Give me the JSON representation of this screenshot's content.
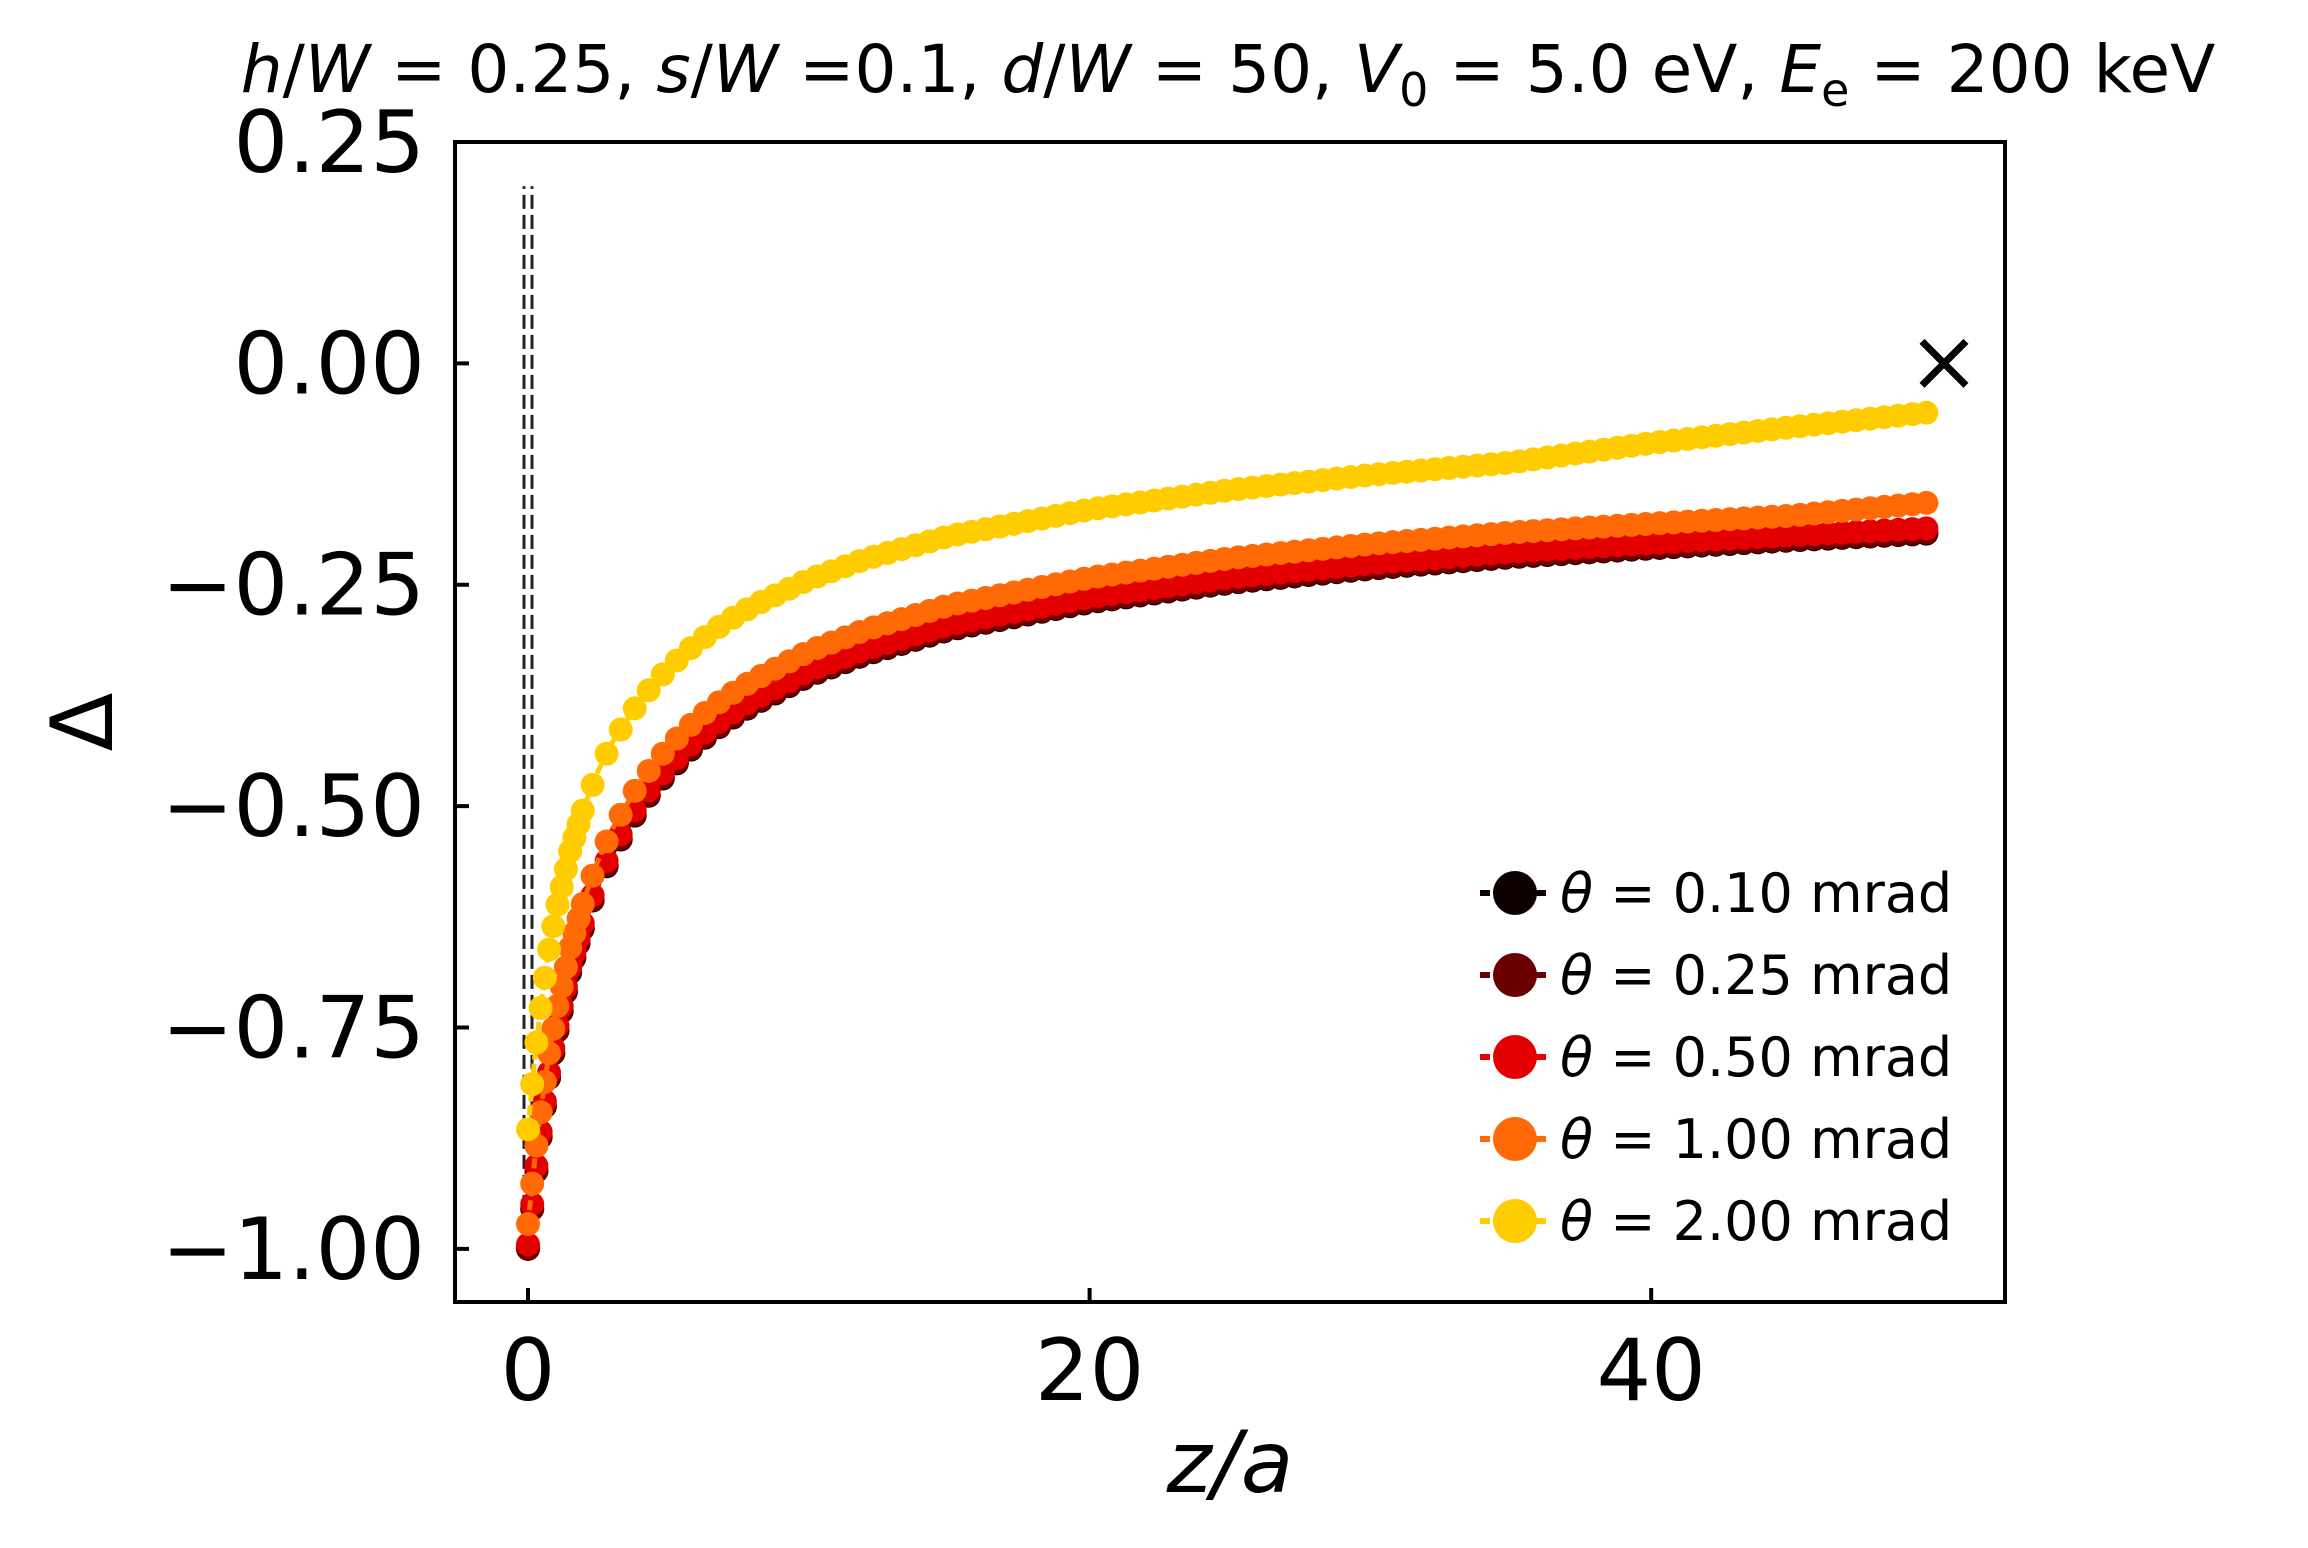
{
  "chart_data": {
    "type": "line",
    "title": {
      "parts": [
        {
          "t": "h",
          "style": "italic"
        },
        {
          "t": "/",
          "style": "normal"
        },
        {
          "t": "W",
          "style": "italic"
        },
        {
          "t": " = 0.25, ",
          "style": "normal"
        },
        {
          "t": "s",
          "style": "italic"
        },
        {
          "t": "/",
          "style": "normal"
        },
        {
          "t": "W",
          "style": "italic"
        },
        {
          "t": " =0.1, ",
          "style": "normal"
        },
        {
          "t": "d",
          "style": "italic"
        },
        {
          "t": "/",
          "style": "normal"
        },
        {
          "t": "W",
          "style": "italic"
        },
        {
          "t": " = 50, ",
          "style": "normal"
        },
        {
          "t": "V",
          "style": "italic"
        },
        {
          "t": "0",
          "style": "sub"
        },
        {
          "t": " = 5.0 eV, ",
          "style": "normal"
        },
        {
          "t": "E",
          "style": "italic"
        },
        {
          "t": "e",
          "style": "sub"
        },
        {
          "t": " = 200 keV",
          "style": "normal"
        }
      ]
    },
    "xlabel": "z/a",
    "ylabel": "Δ",
    "xlim": [
      -2.6,
      52.6
    ],
    "ylim": [
      -1.06,
      0.25
    ],
    "xticks": [
      0,
      20,
      40
    ],
    "xtick_labels": [
      "0",
      "20",
      "40"
    ],
    "yticks": [
      0.25,
      0.0,
      -0.25,
      -0.5,
      -0.75,
      -1.0
    ],
    "ytick_labels": [
      "0.25",
      "0.00",
      "−0.25",
      "−0.50",
      "−0.75",
      "−1.00"
    ],
    "grid": false,
    "legend_position": "lower-right",
    "vertical_reference_line": {
      "x": 0,
      "y_range": [
        -1.0,
        0.2
      ],
      "style": "dashed",
      "color": "#222222"
    },
    "marker_point": {
      "x": 50,
      "y": 0.0,
      "marker": "x",
      "color": "#000000"
    },
    "x": [
      0,
      0.25,
      0.5,
      0.75,
      1,
      1.5,
      2,
      2.5,
      3,
      4,
      5,
      6,
      7,
      8,
      10,
      12,
      15,
      20,
      25,
      30,
      35,
      40,
      45,
      50
    ],
    "series": [
      {
        "name": "θ = 0.10 mrad",
        "color": "#0d0000",
        "values": [
          -1.0,
          -0.925,
          -0.861,
          -0.807,
          -0.761,
          -0.688,
          -0.633,
          -0.589,
          -0.554,
          -0.5,
          -0.461,
          -0.43,
          -0.406,
          -0.386,
          -0.353,
          -0.329,
          -0.301,
          -0.27,
          -0.248,
          -0.232,
          -0.219,
          -0.209,
          -0.2,
          -0.192
        ]
      },
      {
        "name": "θ = 0.25 mrad",
        "color": "#6b0000",
        "values": [
          -1.0,
          -0.924,
          -0.86,
          -0.806,
          -0.76,
          -0.687,
          -0.632,
          -0.588,
          -0.553,
          -0.499,
          -0.46,
          -0.429,
          -0.405,
          -0.385,
          -0.352,
          -0.328,
          -0.3,
          -0.269,
          -0.247,
          -0.231,
          -0.218,
          -0.208,
          -0.199,
          -0.191
        ]
      },
      {
        "name": "θ = 0.50 mrad",
        "color": "#e40000",
        "values": [
          -0.995,
          -0.919,
          -0.855,
          -0.801,
          -0.755,
          -0.682,
          -0.627,
          -0.583,
          -0.548,
          -0.494,
          -0.455,
          -0.424,
          -0.4,
          -0.38,
          -0.347,
          -0.323,
          -0.295,
          -0.264,
          -0.242,
          -0.226,
          -0.213,
          -0.203,
          -0.194,
          -0.186
        ]
      },
      {
        "name": "θ = 1.00 mrad",
        "color": "#ff6a06",
        "values": [
          -0.972,
          -0.896,
          -0.833,
          -0.779,
          -0.733,
          -0.66,
          -0.605,
          -0.561,
          -0.526,
          -0.472,
          -0.433,
          -0.402,
          -0.378,
          -0.358,
          -0.325,
          -0.301,
          -0.273,
          -0.242,
          -0.22,
          -0.204,
          -0.191,
          -0.181,
          -0.172,
          -0.157
        ]
      },
      {
        "name": "θ = 2.00 mrad",
        "color": "#ffcc00",
        "values": [
          -0.865,
          -0.78,
          -0.715,
          -0.662,
          -0.618,
          -0.551,
          -0.5,
          -0.46,
          -0.428,
          -0.38,
          -0.344,
          -0.316,
          -0.293,
          -0.274,
          -0.244,
          -0.221,
          -0.195,
          -0.165,
          -0.143,
          -0.126,
          -0.112,
          -0.09,
          -0.072,
          -0.055
        ]
      }
    ]
  }
}
